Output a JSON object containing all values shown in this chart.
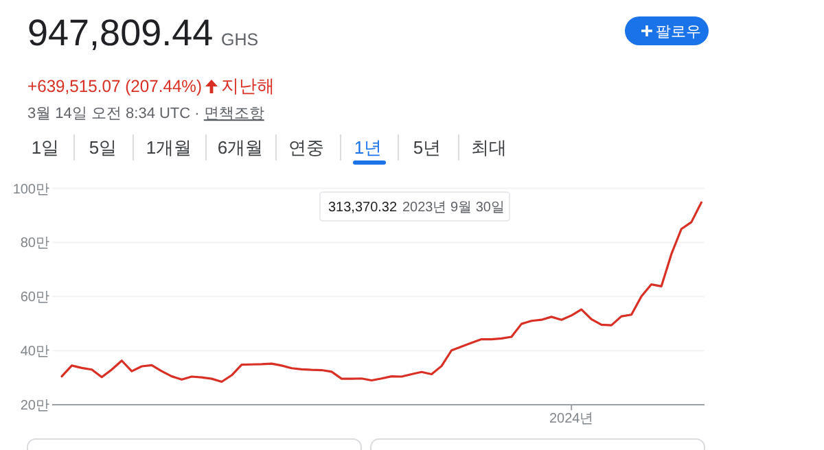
{
  "chart_data": {
    "type": "line",
    "title": "947,809.44",
    "subtitle": "GHS",
    "annotations": [
      "+639,515.07 (207.44%)",
      "지난해",
      "3월 14일 오전 8:34 UTC · ",
      "면책조항",
      "1일",
      "5일",
      "1개월",
      "6개월",
      "연중",
      "1년",
      "5년",
      "최대",
      "팔로우",
      "313,370.32",
      "2023년 9월 30일"
    ],
    "categories": [
      null,
      null,
      null,
      null,
      null,
      null,
      null,
      null,
      null,
      null,
      null,
      null,
      null,
      null,
      null,
      null,
      null,
      null,
      null,
      null,
      null,
      null,
      null,
      null,
      null,
      null,
      null,
      null,
      null,
      null,
      null,
      null,
      null,
      null,
      null,
      null,
      null,
      null,
      null,
      null,
      null,
      null,
      null,
      null,
      null,
      null,
      null,
      null,
      null,
      null,
      null,
      "2024년",
      null,
      null,
      null,
      null,
      null,
      null,
      null,
      null,
      null,
      null,
      null,
      null,
      null
    ],
    "series": [
      {
        "color": "#d93025",
        "values": [
          30.5,
          34.5,
          33.6,
          33.0,
          30.2,
          33.0,
          36.3,
          32.4,
          34.2,
          34.6,
          32.4,
          30.5,
          29.3,
          30.4,
          30.1,
          29.6,
          28.5,
          30.9,
          34.8,
          34.9,
          35.0,
          35.2,
          34.5,
          33.5,
          33.1,
          32.9,
          32.8,
          32.2,
          29.6,
          29.6,
          29.7,
          29.0,
          29.7,
          30.5,
          30.4,
          31.3,
          32.1,
          31.3,
          34.3,
          40.1,
          41.5,
          42.9,
          44.2,
          44.2,
          44.5,
          45.1,
          49.9,
          51.0,
          51.4,
          52.5,
          51.4,
          53.0,
          55.2,
          51.6,
          49.6,
          49.4,
          52.7,
          53.3,
          60.1,
          64.5,
          63.8,
          75.7,
          85.0,
          87.5,
          94.8
        ]
      }
    ],
    "ylim": [
      20,
      100
    ],
    "yticks": [
      {
        "value": 20,
        "label": "20만"
      },
      {
        "value": 40,
        "label": "40만"
      },
      {
        "value": 60,
        "label": "60만"
      },
      {
        "value": 80,
        "label": "80만"
      },
      {
        "value": 100,
        "label": "100만"
      }
    ],
    "grid": "y",
    "marker": "none",
    "line_style": "solid"
  }
}
